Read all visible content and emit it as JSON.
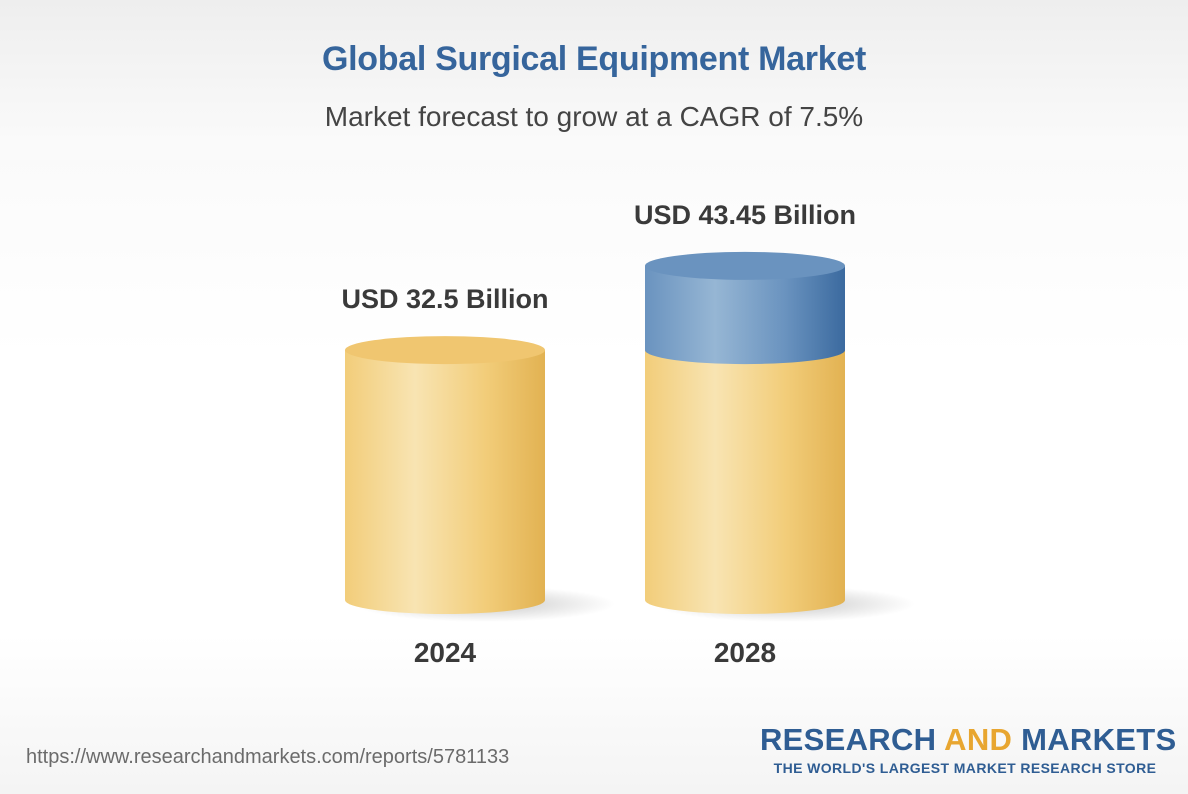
{
  "header": {
    "title": "Global Surgical Equipment Market",
    "subtitle": "Market forecast to grow at a CAGR of 7.5%"
  },
  "chart_data": {
    "type": "bar",
    "style": "3d-cylinder",
    "categories": [
      "2024",
      "2028"
    ],
    "values": [
      32.5,
      43.45
    ],
    "value_labels": [
      "USD 32.5 Billion",
      "USD 43.45 Billion"
    ],
    "unit": "USD Billion",
    "base_value": 32.5,
    "title": "Global Surgical Equipment Market",
    "subtitle": "Market forecast to grow at a CAGR of 7.5%",
    "grid": false,
    "legend": "none",
    "colors": {
      "base": "#f2cd7a",
      "base_dark": "#e2b252",
      "base_light": "#f8e4b2",
      "growth": "#6a93bf",
      "growth_dark": "#3b6a9f",
      "growth_light": "#96b6d4"
    }
  },
  "footer": {
    "url": "https://www.researchandmarkets.com/reports/5781133",
    "brand_part1": "RESEARCH ",
    "brand_part2": "AND",
    "brand_part3": " MARKETS",
    "tagline": "THE WORLD'S LARGEST MARKET RESEARCH STORE"
  }
}
